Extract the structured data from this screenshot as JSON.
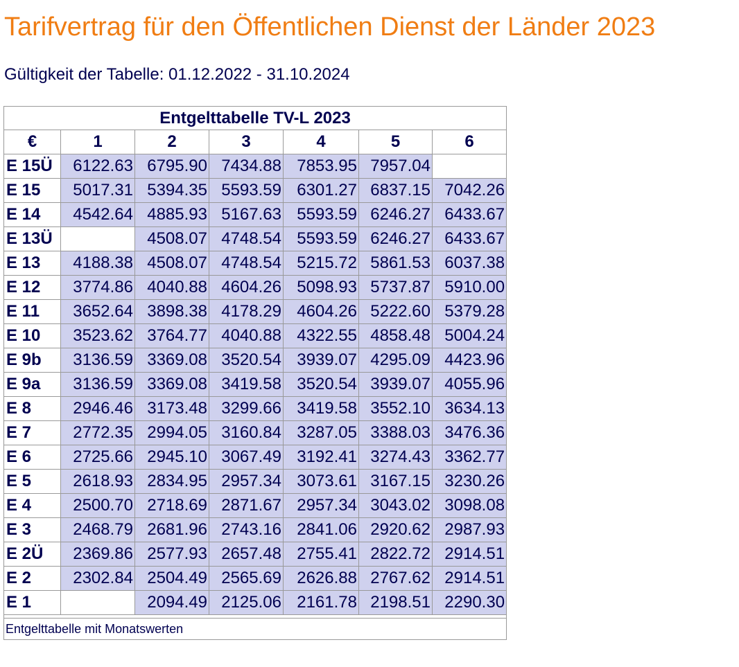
{
  "page": {
    "title": "Tarifvertrag für den Öffentlichen Dienst der Länder 2023",
    "validity": "Gültigkeit der Tabelle: 01.12.2022 - 31.10.2024"
  },
  "table": {
    "caption": "Entgelttabelle TV-L 2023",
    "corner_label": "€",
    "columns": [
      "1",
      "2",
      "3",
      "4",
      "5",
      "6"
    ],
    "rows": [
      {
        "label": "E 15Ü",
        "values": [
          "6122.63",
          "6795.90",
          "7434.88",
          "7853.95",
          "7957.04",
          ""
        ]
      },
      {
        "label": "E 15",
        "values": [
          "5017.31",
          "5394.35",
          "5593.59",
          "6301.27",
          "6837.15",
          "7042.26"
        ]
      },
      {
        "label": "E 14",
        "values": [
          "4542.64",
          "4885.93",
          "5167.63",
          "5593.59",
          "6246.27",
          "6433.67"
        ]
      },
      {
        "label": "E 13Ü",
        "values": [
          "",
          "4508.07",
          "4748.54",
          "5593.59",
          "6246.27",
          "6433.67"
        ]
      },
      {
        "label": "E 13",
        "values": [
          "4188.38",
          "4508.07",
          "4748.54",
          "5215.72",
          "5861.53",
          "6037.38"
        ]
      },
      {
        "label": "E 12",
        "values": [
          "3774.86",
          "4040.88",
          "4604.26",
          "5098.93",
          "5737.87",
          "5910.00"
        ]
      },
      {
        "label": "E 11",
        "values": [
          "3652.64",
          "3898.38",
          "4178.29",
          "4604.26",
          "5222.60",
          "5379.28"
        ]
      },
      {
        "label": "E 10",
        "values": [
          "3523.62",
          "3764.77",
          "4040.88",
          "4322.55",
          "4858.48",
          "5004.24"
        ]
      },
      {
        "label": "E 9b",
        "values": [
          "3136.59",
          "3369.08",
          "3520.54",
          "3939.07",
          "4295.09",
          "4423.96"
        ]
      },
      {
        "label": "E 9a",
        "values": [
          "3136.59",
          "3369.08",
          "3419.58",
          "3520.54",
          "3939.07",
          "4055.96"
        ]
      },
      {
        "label": "E 8",
        "values": [
          "2946.46",
          "3173.48",
          "3299.66",
          "3419.58",
          "3552.10",
          "3634.13"
        ]
      },
      {
        "label": "E 7",
        "values": [
          "2772.35",
          "2994.05",
          "3160.84",
          "3287.05",
          "3388.03",
          "3476.36"
        ]
      },
      {
        "label": "E 6",
        "values": [
          "2725.66",
          "2945.10",
          "3067.49",
          "3192.41",
          "3274.43",
          "3362.77"
        ]
      },
      {
        "label": "E 5",
        "values": [
          "2618.93",
          "2834.95",
          "2957.34",
          "3073.61",
          "3167.15",
          "3230.26"
        ]
      },
      {
        "label": "E 4",
        "values": [
          "2500.70",
          "2718.69",
          "2871.67",
          "2957.34",
          "3043.02",
          "3098.08"
        ]
      },
      {
        "label": "E 3",
        "values": [
          "2468.79",
          "2681.96",
          "2743.16",
          "2841.06",
          "2920.62",
          "2987.93"
        ]
      },
      {
        "label": "E 2Ü",
        "values": [
          "2369.86",
          "2577.93",
          "2657.48",
          "2755.41",
          "2822.72",
          "2914.51"
        ]
      },
      {
        "label": "E 2",
        "values": [
          "2302.84",
          "2504.49",
          "2565.69",
          "2626.88",
          "2767.62",
          "2914.51"
        ]
      },
      {
        "label": "E 1",
        "values": [
          "",
          "2094.49",
          "2125.06",
          "2161.78",
          "2198.51",
          "2290.30"
        ]
      }
    ],
    "footnote": "Entgelttabelle mit Monatswerten"
  },
  "colors": {
    "title": "#f07d13",
    "text": "#000050",
    "cell_fill": "#cfd1ee",
    "border": "#999999"
  }
}
